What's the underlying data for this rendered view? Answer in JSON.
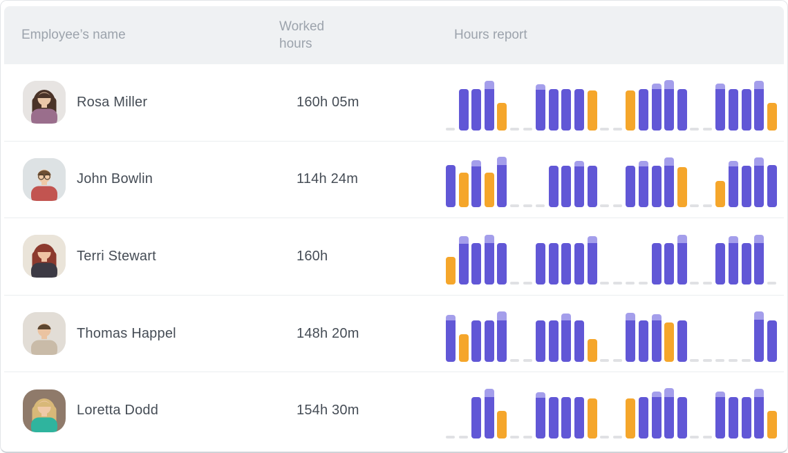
{
  "header": {
    "col_employee": "Employee’s name",
    "col_hours": "Worked hours",
    "col_report": "Hours report"
  },
  "colors": {
    "purple": "#6157d6",
    "purple_light": "#a49eeb",
    "orange": "#f5a62b",
    "dash": "#e0e1e4",
    "header_bg": "#eff1f3",
    "row_border": "#eaedef",
    "text_dark": "#454c55",
    "text_gray": "#9ca3ac"
  },
  "report_legend": {
    "slot_format": "[type, barHeightPx, lightCapPx] — type 'w' = purple worked-day bar, 'x' = orange day bar, '-' = off-day dash; 26 day slots per employee; chart area is 73px tall"
  },
  "employees": [
    {
      "name": "Rosa Miller",
      "worked_hours": "160h 05m",
      "avatar": {
        "style": "curly",
        "bg": "#e7e4e2",
        "hair": "#4a3328",
        "skin": "#eac7a8",
        "shirt": "#9a6e8c",
        "glasses": false
      },
      "report": [
        [
          "-"
        ],
        [
          "w",
          60,
          0
        ],
        [
          "w",
          60,
          0
        ],
        [
          "w",
          72,
          12
        ],
        [
          "x",
          40
        ],
        [
          "-"
        ],
        [
          "-"
        ],
        [
          "w",
          67,
          8
        ],
        [
          "w",
          60,
          0
        ],
        [
          "w",
          60,
          0
        ],
        [
          "w",
          60,
          0
        ],
        [
          "x",
          58
        ],
        [
          "-"
        ],
        [
          "-"
        ],
        [
          "x",
          58
        ],
        [
          "w",
          60,
          0
        ],
        [
          "w",
          68,
          8
        ],
        [
          "w",
          73,
          13
        ],
        [
          "w",
          60,
          0
        ],
        [
          "-"
        ],
        [
          "-"
        ],
        [
          "w",
          68,
          8
        ],
        [
          "w",
          60,
          0
        ],
        [
          "w",
          60,
          0
        ],
        [
          "w",
          72,
          12
        ],
        [
          "x",
          40
        ]
      ]
    },
    {
      "name": "John Bowlin",
      "worked_hours": "114h 24m",
      "avatar": {
        "style": "short",
        "bg": "#dde2e4",
        "hair": "#6e4f33",
        "skin": "#efc9a6",
        "shirt": "#c25450",
        "glasses": true
      },
      "report": [
        [
          "w",
          61,
          0
        ],
        [
          "x",
          50
        ],
        [
          "w",
          68,
          9
        ],
        [
          "x",
          50
        ],
        [
          "w",
          73,
          12
        ],
        [
          "-"
        ],
        [
          "-"
        ],
        [
          "-"
        ],
        [
          "w",
          60,
          0
        ],
        [
          "w",
          60,
          0
        ],
        [
          "w",
          67,
          8
        ],
        [
          "w",
          60,
          0
        ],
        [
          "-"
        ],
        [
          "-"
        ],
        [
          "w",
          60,
          0
        ],
        [
          "w",
          67,
          8
        ],
        [
          "w",
          60,
          0
        ],
        [
          "w",
          72,
          12
        ],
        [
          "x",
          58
        ],
        [
          "-"
        ],
        [
          "-"
        ],
        [
          "x",
          38
        ],
        [
          "w",
          67,
          8
        ],
        [
          "w",
          60,
          0
        ],
        [
          "w",
          72,
          12
        ],
        [
          "w",
          61,
          0
        ]
      ]
    },
    {
      "name": "Terri Stewart",
      "worked_hours": "160h",
      "avatar": {
        "style": "bangs",
        "bg": "#eae4d9",
        "hair": "#8c3a2e",
        "skin": "#efc3a4",
        "shirt": "#3c3a44",
        "glasses": false
      },
      "report": [
        [
          "x",
          40
        ],
        [
          "w",
          70,
          11
        ],
        [
          "w",
          60,
          0
        ],
        [
          "w",
          72,
          12
        ],
        [
          "w",
          60,
          0
        ],
        [
          "-"
        ],
        [
          "-"
        ],
        [
          "w",
          60,
          0
        ],
        [
          "w",
          60,
          0
        ],
        [
          "w",
          60,
          0
        ],
        [
          "w",
          60,
          0
        ],
        [
          "w",
          70,
          10
        ],
        [
          "-"
        ],
        [
          "-"
        ],
        [
          "-"
        ],
        [
          "-"
        ],
        [
          "w",
          60,
          0
        ],
        [
          "w",
          60,
          0
        ],
        [
          "w",
          72,
          12
        ],
        [
          "-"
        ],
        [
          "-"
        ],
        [
          "w",
          60,
          0
        ],
        [
          "w",
          70,
          10
        ],
        [
          "w",
          60,
          0
        ],
        [
          "w",
          72,
          12
        ],
        [
          "-"
        ]
      ]
    },
    {
      "name": "Thomas Happel",
      "worked_hours": "148h 20m",
      "avatar": {
        "style": "short",
        "bg": "#e2ddd6",
        "hair": "#5c4630",
        "skin": "#ebc3a1",
        "shirt": "#c9bba8",
        "glasses": false
      },
      "report": [
        [
          "w",
          68,
          8
        ],
        [
          "x",
          40
        ],
        [
          "w",
          60,
          0
        ],
        [
          "w",
          60,
          0
        ],
        [
          "w",
          73,
          13
        ],
        [
          "-"
        ],
        [
          "-"
        ],
        [
          "w",
          60,
          0
        ],
        [
          "w",
          60,
          0
        ],
        [
          "w",
          70,
          10
        ],
        [
          "w",
          60,
          0
        ],
        [
          "x",
          33
        ],
        [
          "-"
        ],
        [
          "-"
        ],
        [
          "w",
          71,
          11
        ],
        [
          "w",
          60,
          0
        ],
        [
          "w",
          69,
          9
        ],
        [
          "x",
          57
        ],
        [
          "w",
          60,
          0
        ],
        [
          "-"
        ],
        [
          "-"
        ],
        [
          "-"
        ],
        [
          "-"
        ],
        [
          "-"
        ],
        [
          "w",
          73,
          12
        ],
        [
          "w",
          60,
          0
        ]
      ]
    },
    {
      "name": "Loretta Dodd",
      "worked_hours": "154h 30m",
      "avatar": {
        "style": "long",
        "bg": "#8f7a6a",
        "hair": "#d8b878",
        "skin": "#efc9a8",
        "shirt": "#2fb49e",
        "glasses": false
      },
      "report": [
        [
          "-"
        ],
        [
          "-"
        ],
        [
          "w",
          60,
          0
        ],
        [
          "w",
          72,
          12
        ],
        [
          "x",
          40
        ],
        [
          "-"
        ],
        [
          "-"
        ],
        [
          "w",
          67,
          8
        ],
        [
          "w",
          60,
          0
        ],
        [
          "w",
          60,
          0
        ],
        [
          "w",
          60,
          0
        ],
        [
          "x",
          58
        ],
        [
          "-"
        ],
        [
          "-"
        ],
        [
          "x",
          58
        ],
        [
          "w",
          60,
          0
        ],
        [
          "w",
          68,
          8
        ],
        [
          "w",
          73,
          13
        ],
        [
          "w",
          60,
          0
        ],
        [
          "-"
        ],
        [
          "-"
        ],
        [
          "w",
          68,
          8
        ],
        [
          "w",
          60,
          0
        ],
        [
          "w",
          60,
          0
        ],
        [
          "w",
          72,
          12
        ],
        [
          "x",
          40
        ]
      ]
    }
  ]
}
